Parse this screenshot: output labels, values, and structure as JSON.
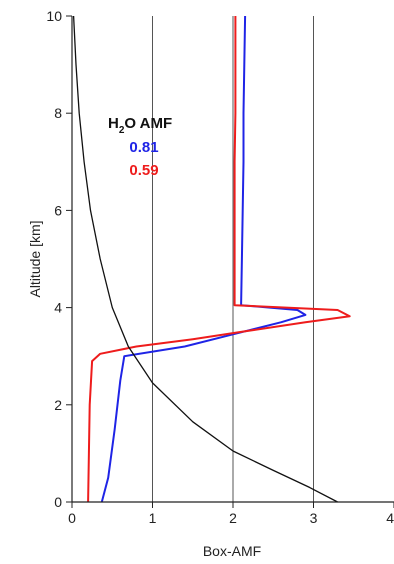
{
  "chart_data": {
    "type": "line",
    "xlabel": "Box-AMF",
    "ylabel": "Altitude [km]",
    "xlim": [
      0,
      4
    ],
    "ylim": [
      0,
      10
    ],
    "x_ticks": [
      "0",
      "1",
      "2",
      "3",
      "4"
    ],
    "y_ticks": [
      "0",
      "2",
      "4",
      "6",
      "8",
      "10"
    ],
    "grid": "vertical",
    "colors": {
      "axis": "#222222",
      "grid": "#555555"
    },
    "annotation": {
      "title_prefix": "H",
      "title_sub": "2",
      "title_suffix": "O AMF",
      "values": [
        {
          "text": "0.81",
          "color": "#1f24e6"
        },
        {
          "text": "0.59",
          "color": "#ee1c1c"
        }
      ]
    },
    "series": [
      {
        "color": "#1f24e6",
        "points": [
          [
            0.37,
            0
          ],
          [
            0.45,
            0.5
          ],
          [
            0.53,
            1.5
          ],
          [
            0.6,
            2.5
          ],
          [
            0.65,
            3.0
          ],
          [
            1.4,
            3.2
          ],
          [
            2.0,
            3.45
          ],
          [
            2.6,
            3.7
          ],
          [
            2.9,
            3.85
          ],
          [
            2.8,
            3.95
          ],
          [
            2.1,
            4.05
          ],
          [
            2.11,
            5.0
          ],
          [
            2.12,
            6.0
          ],
          [
            2.13,
            7.0
          ],
          [
            2.13,
            8.0
          ],
          [
            2.14,
            9.0
          ],
          [
            2.15,
            10
          ]
        ]
      },
      {
        "color": "#ee1c1c",
        "points": [
          [
            0.2,
            0
          ],
          [
            0.21,
            1.0
          ],
          [
            0.22,
            2.0
          ],
          [
            0.25,
            2.9
          ],
          [
            0.35,
            3.05
          ],
          [
            0.8,
            3.2
          ],
          [
            1.5,
            3.35
          ],
          [
            2.1,
            3.5
          ],
          [
            2.9,
            3.7
          ],
          [
            3.45,
            3.82
          ],
          [
            3.3,
            3.95
          ],
          [
            2.02,
            4.05
          ],
          [
            2.02,
            5.0
          ],
          [
            2.02,
            6.0
          ],
          [
            2.02,
            7.0
          ],
          [
            2.03,
            8.0
          ],
          [
            2.03,
            9.0
          ],
          [
            2.03,
            10
          ]
        ]
      },
      {
        "color": "#111111",
        "points": [
          [
            3.3,
            0
          ],
          [
            2.95,
            0.3
          ],
          [
            2.5,
            0.65
          ],
          [
            2.0,
            1.05
          ],
          [
            1.5,
            1.65
          ],
          [
            1.0,
            2.45
          ],
          [
            0.7,
            3.2
          ],
          [
            0.5,
            4.0
          ],
          [
            0.35,
            5.0
          ],
          [
            0.23,
            6.0
          ],
          [
            0.15,
            7.0
          ],
          [
            0.09,
            8.0
          ],
          [
            0.05,
            9.0
          ],
          [
            0.02,
            10
          ]
        ]
      }
    ]
  }
}
